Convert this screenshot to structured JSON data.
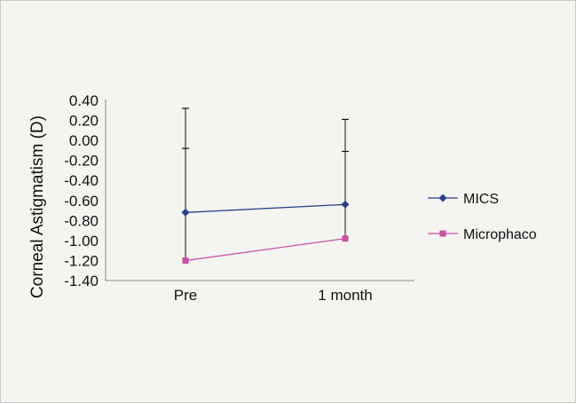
{
  "chart_data": {
    "type": "line",
    "title": "",
    "xlabel": "",
    "ylabel": "Corneal Astigmatism (D)",
    "categories": [
      "Pre",
      "1 month"
    ],
    "ylim": [
      -1.4,
      0.4
    ],
    "yticks": [
      "0.40",
      "0.20",
      "0.00",
      "-0.20",
      "-0.40",
      "-0.60",
      "-0.80",
      "-1.00",
      "-1.20",
      "-1.40"
    ],
    "grid": false,
    "legend_position": "right",
    "series": [
      {
        "name": "MICS",
        "values": [
          -0.72,
          -0.64
        ],
        "error_upper": [
          0.32,
          0.21
        ],
        "error_lower": [
          -0.08,
          -0.11
        ],
        "color": "#2e3f8f",
        "marker": "diamond"
      },
      {
        "name": "Microphaco",
        "values": [
          -1.2,
          -0.98
        ],
        "error_upper": [
          -0.08,
          -0.11
        ],
        "error_lower": [
          -1.2,
          -0.98
        ],
        "color": "#c94fa6",
        "marker": "square"
      }
    ]
  }
}
